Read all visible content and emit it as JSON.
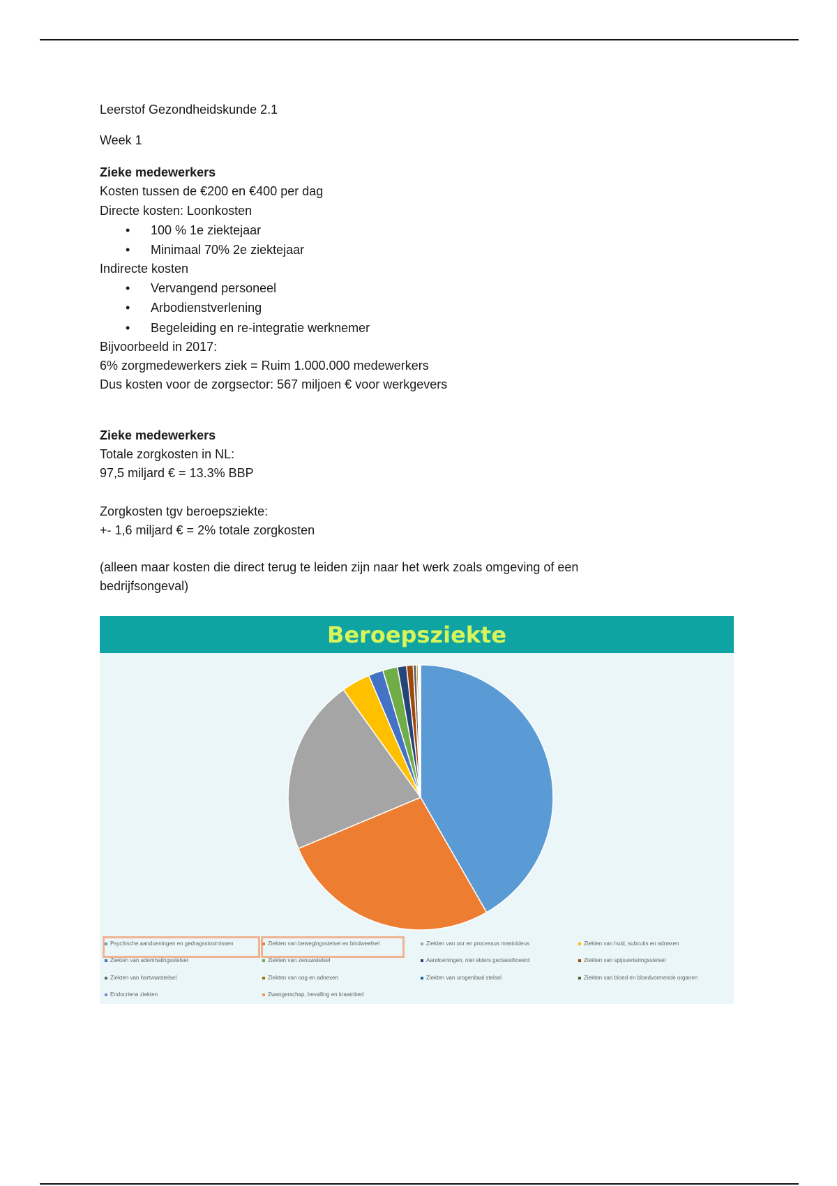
{
  "document": {
    "title": "Leerstof Gezondheidskunde 2.1",
    "week": "Week 1",
    "section1": {
      "heading": "Zieke medewerkers",
      "lines": [
        "Kosten tussen de €200 en €400 per dag",
        "Directe kosten: Loonkosten"
      ],
      "direct_bullets": [
        "100 % 1e ziektejaar",
        "Minimaal 70% 2e ziektejaar"
      ],
      "indirect_label": "Indirecte kosten",
      "indirect_bullets": [
        "Vervangend personeel",
        "Arbodienstverlening",
        "Begeleiding en re-integratie werknemer"
      ],
      "example": [
        "Bijvoorbeeld in 2017:",
        "6% zorgmedewerkers ziek = Ruim 1.000.000 medewerkers",
        "Dus kosten voor de zorgsector: 567 miljoen € voor werkgevers"
      ]
    },
    "section2": {
      "heading": "Zieke medewerkers",
      "lines": [
        "Totale zorgkosten in NL:",
        "97,5 miljard € = 13.3% BBP"
      ],
      "lines2": [
        "Zorgkosten tgv beroepsziekte:",
        "+- 1,6 miljard € = 2% totale zorgkosten"
      ],
      "note": [
        "(alleen maar kosten die direct terug te leiden zijn naar het werk zoals omgeving of een",
        "bedrijfsongeval)"
      ]
    }
  },
  "chart_data": {
    "type": "pie",
    "title": "Beroepsziekte",
    "legend_position": "bottom",
    "highlighted_legend_entries": [
      "Psychische aandoeningen en gedragsstoornissen",
      "Ziekten van bewegingsstelsel en bindweefsel"
    ],
    "slices": [
      {
        "name": "Psychische aandoeningen en gedragsstoornissen",
        "value": 41.7,
        "color": "#5b9bd5"
      },
      {
        "name": "Ziekten van bewegingsstelsel en bindweefsel",
        "value": 27.0,
        "color": "#ed7d31"
      },
      {
        "name": "Ziekten van oor en processus mastoideus",
        "value": 21.4,
        "color": "#a5a5a5"
      },
      {
        "name": "Ziekten van huid, subcutis en adnexen",
        "value": 3.5,
        "color": "#ffc000"
      },
      {
        "name": "Ziekten van ademhalingsstelsel",
        "value": 1.8,
        "color": "#4472c4"
      },
      {
        "name": "Ziekten van zenuwstelsel",
        "value": 1.8,
        "color": "#70ad47"
      },
      {
        "name": "Aandoeningen, niet elders geclassificeerd",
        "value": 1.1,
        "color": "#264478"
      },
      {
        "name": "Ziekten van spijsverteringsstelsel",
        "value": 0.8,
        "color": "#9e480e"
      },
      {
        "name": "Ziekten van hartvaatstelsel",
        "value": 0.4,
        "color": "#636363"
      },
      {
        "name": "Ziekten van oog en adnexen",
        "value": 0.2,
        "color": "#997300"
      },
      {
        "name": "Ziekten van urogenitaal stelsel",
        "value": 0.1,
        "color": "#255e91"
      },
      {
        "name": "Ziekten van bloed en bloedvormende organen",
        "value": 0.1,
        "color": "#43682b"
      },
      {
        "name": "Endocriene ziekten",
        "value": 0.05,
        "color": "#698ed0"
      },
      {
        "name": "Zwangerschap, bevalling en kraambed",
        "value": 0.05,
        "color": "#f1975a"
      }
    ],
    "legend_order": [
      "Psychische aandoeningen en gedragsstoornissen",
      "Ziekten van bewegingsstelsel en bindweefsel",
      "Ziekten van oor en processus mastoideus",
      "Ziekten van huid, subcutis en adnexen",
      "Ziekten van ademhalingsstelsel",
      "Ziekten van zenuwstelsel",
      "Aandoeningen, niet elders geclassificeerd",
      "Ziekten van spijsverteringsstelsel",
      "Ziekten van hartvaatstelsel",
      "Ziekten van oog en adnexen",
      "Ziekten van urogenitaal stelsel",
      "Ziekten van bloed en bloedvormende organen",
      "Endocriene ziekten",
      "Zwangerschap, bevalling en kraambed"
    ]
  }
}
